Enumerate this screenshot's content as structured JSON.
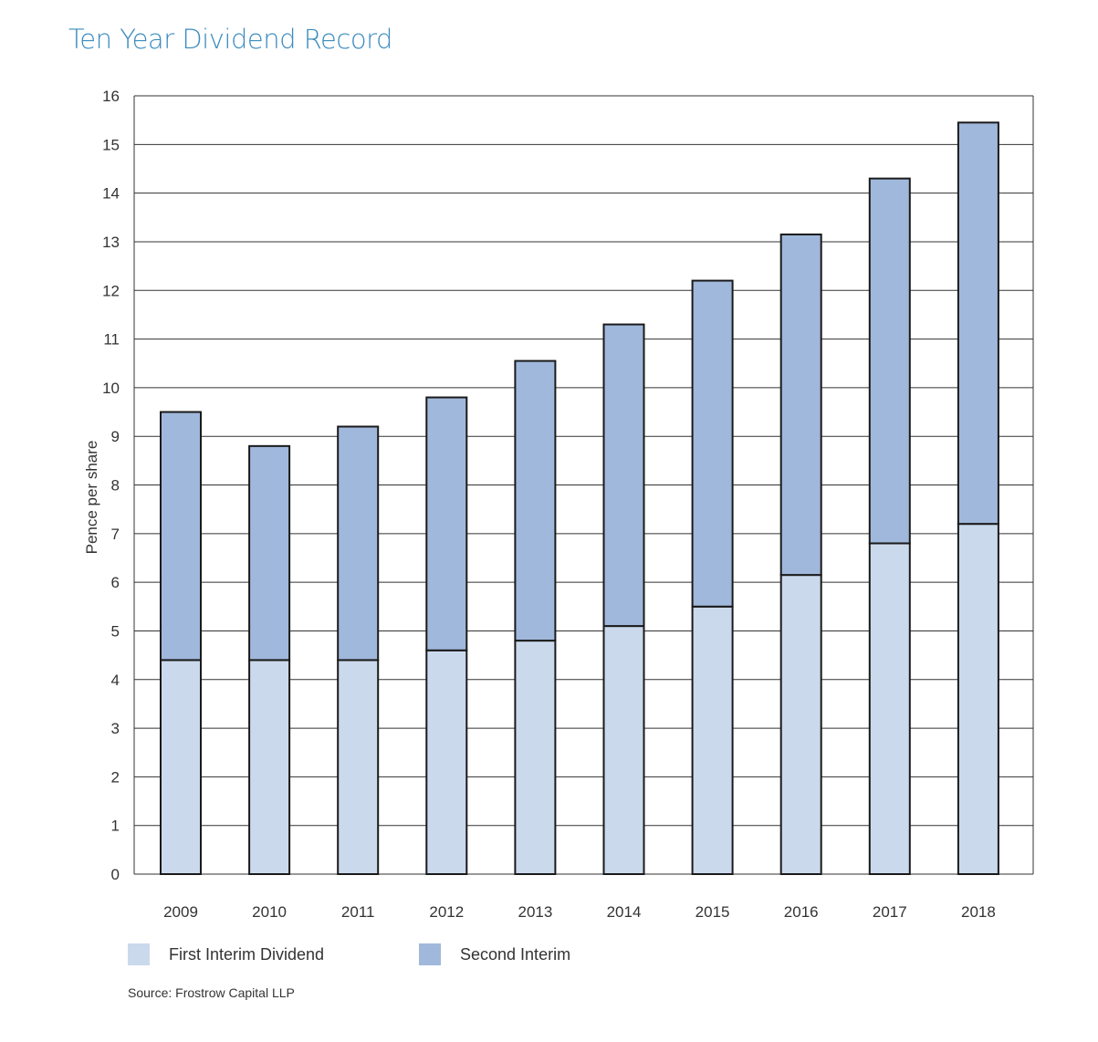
{
  "colors": {
    "title": "#3a8bbf",
    "first_interim": "#cbd9ec",
    "second_interim": "#a0b8db",
    "bar_outline": "#1a1a1a",
    "grid": "#333333",
    "text": "#333333"
  },
  "chart_data": {
    "type": "bar",
    "stacked": true,
    "title": "Ten Year Dividend Record",
    "xlabel": "",
    "ylabel": "Pence per share",
    "ylim": [
      0,
      16
    ],
    "yticks": [
      "0",
      "1",
      "2",
      "3",
      "4",
      "5",
      "6",
      "7",
      "8",
      "9",
      "10",
      "11",
      "12",
      "13",
      "14",
      "15",
      "16"
    ],
    "grid": true,
    "legend_position": "bottom-left",
    "categories": [
      "2009",
      "2010",
      "2011",
      "2012",
      "2013",
      "2014",
      "2015",
      "2016",
      "2017",
      "2018"
    ],
    "series": [
      {
        "name": "First Interim Dividend",
        "color": "#cbd9ec",
        "values": [
          4.4,
          4.4,
          4.4,
          4.6,
          4.8,
          5.1,
          5.5,
          6.15,
          6.8,
          7.2
        ]
      },
      {
        "name": "Second Interim",
        "color": "#a0b8db",
        "values": [
          5.1,
          4.4,
          4.8,
          5.2,
          5.75,
          6.2,
          6.7,
          7.0,
          7.5,
          8.25
        ]
      }
    ],
    "totals": [
      9.5,
      8.8,
      9.2,
      9.8,
      10.55,
      11.3,
      12.2,
      13.15,
      14.3,
      15.45
    ]
  },
  "source": "Source: Frostrow Capital LLP"
}
